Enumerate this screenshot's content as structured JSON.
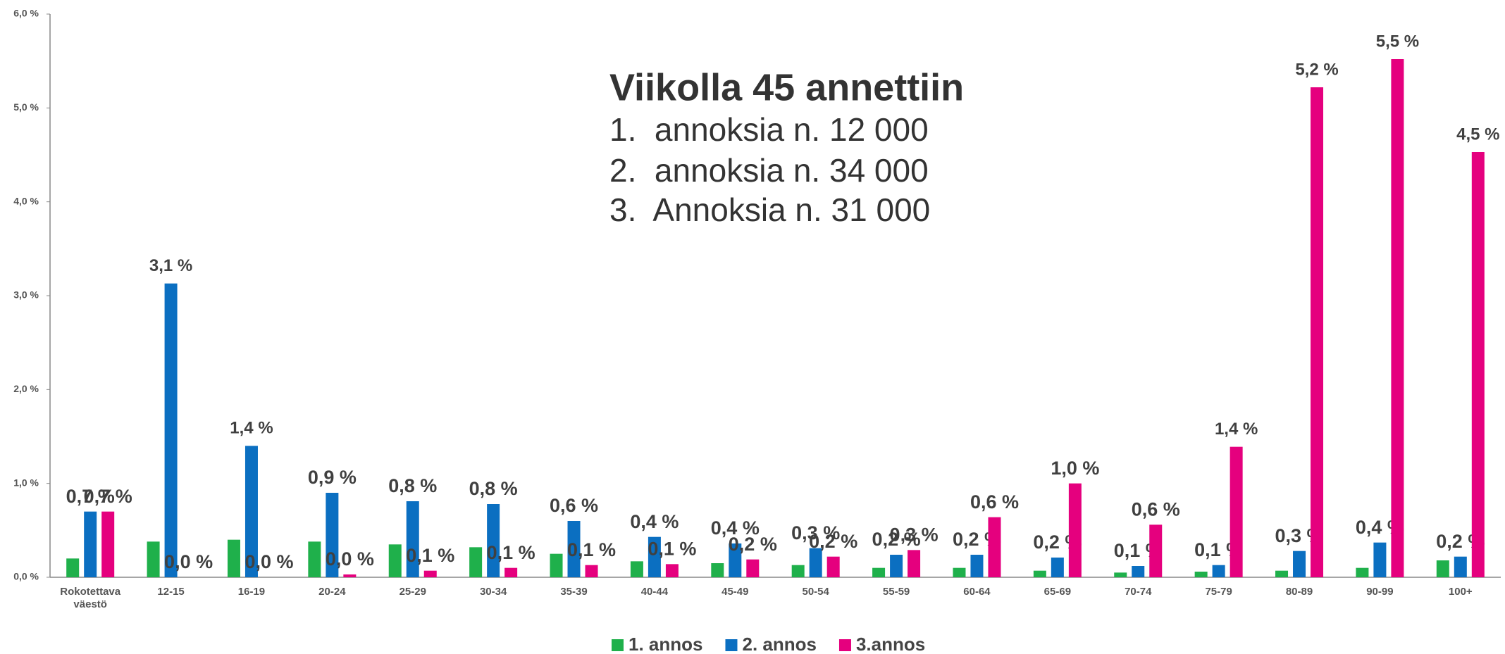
{
  "chart_data": {
    "type": "bar",
    "annotation": {
      "title": "Viikolla 45 annettiin",
      "items": [
        "1.  annoksia n. 12 000",
        "2.  annoksia n. 34 000",
        "3.  Annoksia n. 31 000"
      ]
    },
    "categories": [
      "Rokotettava väestö",
      "12-15",
      "16-19",
      "20-24",
      "25-29",
      "30-34",
      "35-39",
      "40-44",
      "45-49",
      "50-54",
      "55-59",
      "60-64",
      "65-69",
      "70-74",
      "75-79",
      "80-89",
      "90-99",
      "100+"
    ],
    "series": [
      {
        "name": "1. annos",
        "color": "#1fb04b",
        "values": [
          0.2,
          0.38,
          0.4,
          0.38,
          0.35,
          0.32,
          0.25,
          0.17,
          0.15,
          0.13,
          0.1,
          0.1,
          0.07,
          0.05,
          0.06,
          0.07,
          0.1,
          0.18
        ]
      },
      {
        "name": "2. annos",
        "color": "#0b6fc1",
        "values": [
          0.7,
          3.13,
          1.4,
          0.9,
          0.81,
          0.78,
          0.6,
          0.43,
          0.36,
          0.31,
          0.24,
          0.24,
          0.21,
          0.12,
          0.13,
          0.28,
          0.37,
          0.22
        ],
        "value_labels": [
          "0,7 %",
          "3,1 %",
          "1,4 %",
          "0,9 %",
          "0,8 %",
          "0,8 %",
          "0,6 %",
          "0,4 %",
          "0,4 %",
          "0,3 %",
          "0,2 %",
          "0,2 %",
          "0,2 %",
          "0,1 %",
          "0,1 %",
          "0,3 %",
          "0,4 %",
          "0,2 %"
        ]
      },
      {
        "name": "3.annos",
        "color": "#e5007e",
        "values": [
          0.7,
          0,
          0,
          0.03,
          0.07,
          0.1,
          0.13,
          0.14,
          0.19,
          0.22,
          0.29,
          0.64,
          1.0,
          0.56,
          1.39,
          5.22,
          5.52,
          4.53
        ],
        "value_labels": [
          "0,7 %",
          "0,0 %",
          "0,0 %",
          "0,0 %",
          "0,1 %",
          "0,1 %",
          "0,1 %",
          "0,1 %",
          "0,2 %",
          "0,2 %",
          "0,3 %",
          "0,6 %",
          "1,0 %",
          "0,6 %",
          "1,4 %",
          "5,2 %",
          "5,5 %",
          "4,5 %"
        ]
      }
    ],
    "ylim": [
      0,
      6
    ],
    "yticks": [
      {
        "value": 0,
        "label": "0,0 %"
      },
      {
        "value": 1,
        "label": "1,0 %"
      },
      {
        "value": 2,
        "label": "2,0 %"
      },
      {
        "value": 3,
        "label": "3,0 %"
      },
      {
        "value": 4,
        "label": "4,0 %"
      },
      {
        "value": 5,
        "label": "5,0 %"
      },
      {
        "value": 6,
        "label": "6,0 %"
      }
    ],
    "legend": "bottom"
  }
}
